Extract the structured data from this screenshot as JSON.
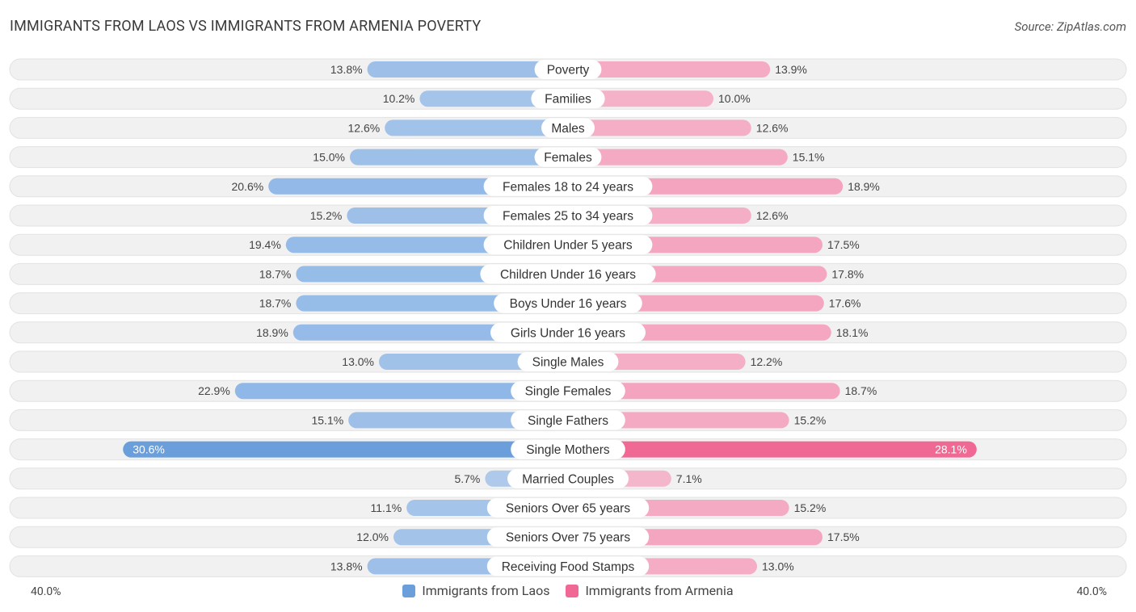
{
  "title": "IMMIGRANTS FROM LAOS VS IMMIGRANTS FROM ARMENIA POVERTY",
  "source": "Source: ZipAtlas.com",
  "colors": {
    "laos": "#8ab4e6",
    "laos_strong": "#6a9fdc",
    "armenia": "#f59ab8",
    "armenia_strong": "#f06994",
    "row_bg": "#f1f1f1"
  },
  "legend": {
    "laos_label": "Immigrants from Laos",
    "armenia_label": "Immigrants from Armenia"
  },
  "axis": {
    "left_label": "40.0%",
    "right_label": "40.0%"
  },
  "chart_data": {
    "type": "bar",
    "orientation": "horizontal-diverging",
    "title": "IMMIGRANTS FROM LAOS VS IMMIGRANTS FROM ARMENIA POVERTY",
    "xlim": [
      0,
      40
    ],
    "categories": [
      "Poverty",
      "Families",
      "Males",
      "Females",
      "Females 18 to 24 years",
      "Females 25 to 34 years",
      "Children Under 5 years",
      "Children Under 16 years",
      "Boys Under 16 years",
      "Girls Under 16 years",
      "Single Males",
      "Single Females",
      "Single Fathers",
      "Single Mothers",
      "Married Couples",
      "Seniors Over 65 years",
      "Seniors Over 75 years",
      "Receiving Food Stamps"
    ],
    "series": [
      {
        "name": "Immigrants from Laos",
        "values": [
          13.8,
          10.2,
          12.6,
          15.0,
          20.6,
          15.2,
          19.4,
          18.7,
          18.7,
          18.9,
          13.0,
          22.9,
          15.1,
          30.6,
          5.7,
          11.1,
          12.0,
          13.8
        ],
        "labels": [
          "13.8%",
          "10.2%",
          "12.6%",
          "15.0%",
          "20.6%",
          "15.2%",
          "19.4%",
          "18.7%",
          "18.7%",
          "18.9%",
          "13.0%",
          "22.9%",
          "15.1%",
          "30.6%",
          "5.7%",
          "11.1%",
          "12.0%",
          "13.8%"
        ]
      },
      {
        "name": "Immigrants from Armenia",
        "values": [
          13.9,
          10.0,
          12.6,
          15.1,
          18.9,
          12.6,
          17.5,
          17.8,
          17.6,
          18.1,
          12.2,
          18.7,
          15.2,
          28.1,
          7.1,
          15.2,
          17.5,
          13.0
        ],
        "labels": [
          "13.9%",
          "10.0%",
          "12.6%",
          "15.1%",
          "18.9%",
          "12.6%",
          "17.5%",
          "17.8%",
          "17.6%",
          "18.1%",
          "12.2%",
          "18.7%",
          "15.2%",
          "28.1%",
          "7.1%",
          "15.2%",
          "17.5%",
          "13.0%"
        ]
      }
    ]
  }
}
